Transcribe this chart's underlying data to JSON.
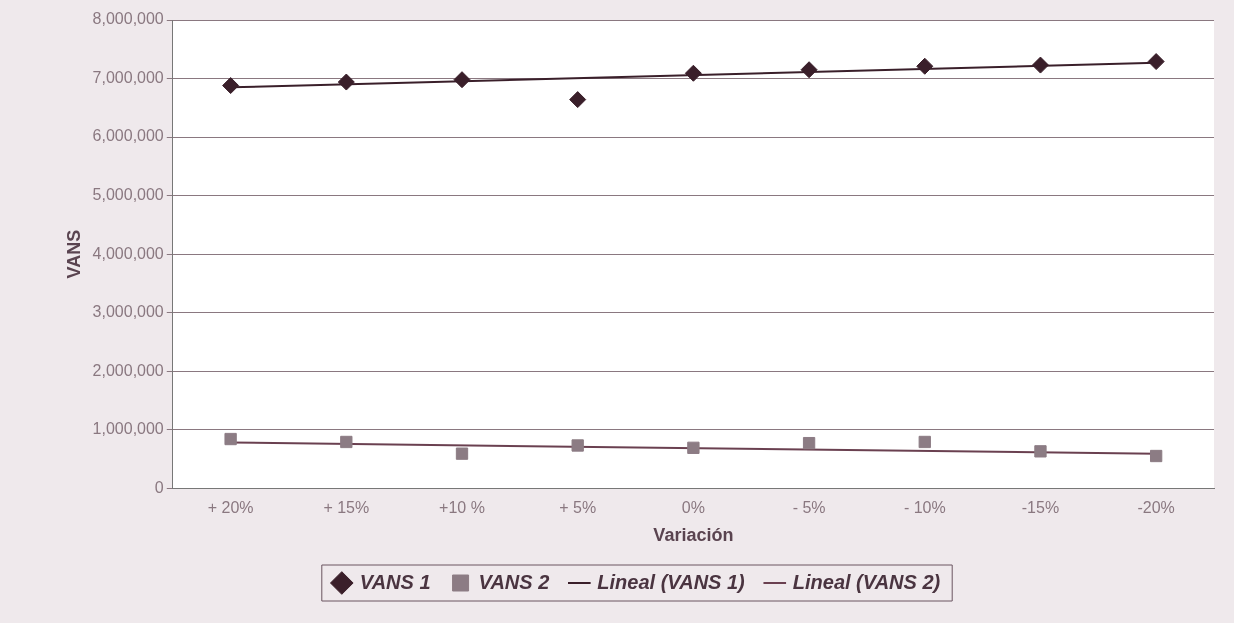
{
  "chart_data": {
    "type": "scatter",
    "xlabel": "Variación",
    "ylabel": "VANS",
    "categories": [
      "+ 20%",
      "+ 15%",
      "+10 %",
      "+ 5%",
      "0%",
      "- 5%",
      "- 10%",
      "-15%",
      "-20%"
    ],
    "series": [
      {
        "name": "VANS 1",
        "marker": "diamond",
        "color": "#3a1f2a",
        "values": [
          6880000,
          6940000,
          6980000,
          6640000,
          7090000,
          7150000,
          7210000,
          7230000,
          7290000
        ]
      },
      {
        "name": "VANS 2",
        "marker": "square",
        "color": "#8c7c84",
        "values": [
          840000,
          790000,
          590000,
          730000,
          690000,
          770000,
          790000,
          630000,
          550000
        ]
      },
      {
        "name": "Lineal (VANS 1)",
        "type": "line",
        "marker": "none",
        "color": "#3a1f2a",
        "x": [
          "+ 20%",
          "-20%"
        ],
        "values": [
          6850000,
          7270000
        ]
      },
      {
        "name": "Lineal (VANS 2)",
        "type": "line",
        "marker": "none",
        "color": "#6a4050",
        "x": [
          "+ 20%",
          "-20%"
        ],
        "values": [
          780000,
          590000
        ]
      }
    ],
    "ylim": [
      0,
      8000000
    ],
    "yticks": [
      0,
      {
        "value": 1000000,
        "label": "1,000,000"
      },
      {
        "value": 2000000,
        "label": "2,000,000"
      },
      {
        "value": 3000000,
        "label": "3,000,000"
      },
      {
        "value": 4000000,
        "label": "4,000,000"
      },
      {
        "value": 5000000,
        "label": "5,000,000"
      },
      {
        "value": 6000000,
        "label": "6,000,000"
      },
      {
        "value": 7000000,
        "label": "7,000,000"
      },
      {
        "value": 8000000,
        "label": "8,000,000"
      }
    ],
    "grid": "y",
    "legend": "bottom",
    "line_style": "solid"
  }
}
